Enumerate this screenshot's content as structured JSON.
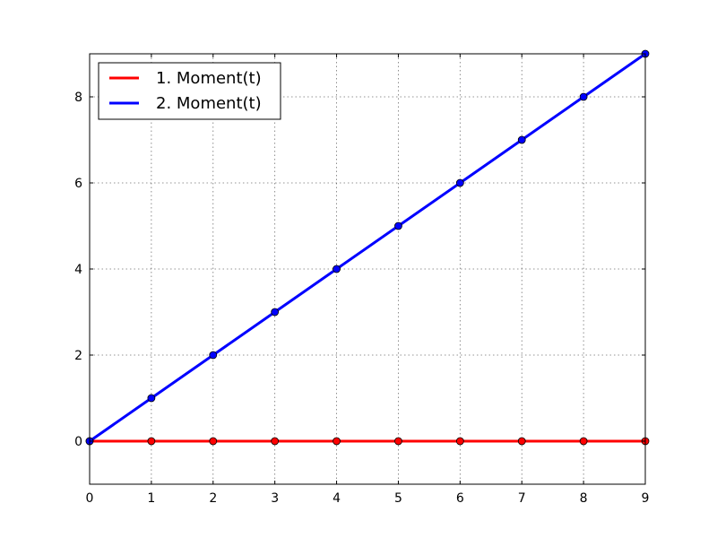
{
  "chart_data": {
    "type": "line",
    "title": "",
    "xlabel": "",
    "ylabel": "",
    "xlim": [
      0,
      9
    ],
    "ylim": [
      -1,
      9
    ],
    "xticks": [
      "0",
      "1",
      "2",
      "3",
      "4",
      "5",
      "6",
      "7",
      "8",
      "9"
    ],
    "yticks": [
      "0",
      "2",
      "4",
      "6",
      "8"
    ],
    "grid": true,
    "legend_position": "top-left",
    "x": [
      0,
      1,
      2,
      3,
      4,
      5,
      6,
      7,
      8,
      9
    ],
    "series": [
      {
        "name": "1. Moment(t)",
        "color": "#ff0000",
        "values": [
          0,
          0,
          0,
          0,
          0,
          0,
          0,
          0,
          0,
          0
        ]
      },
      {
        "name": "2. Moment(t)",
        "color": "#0000ff",
        "values": [
          0,
          1,
          2,
          3,
          4,
          5,
          6,
          7,
          8,
          9
        ]
      }
    ]
  }
}
